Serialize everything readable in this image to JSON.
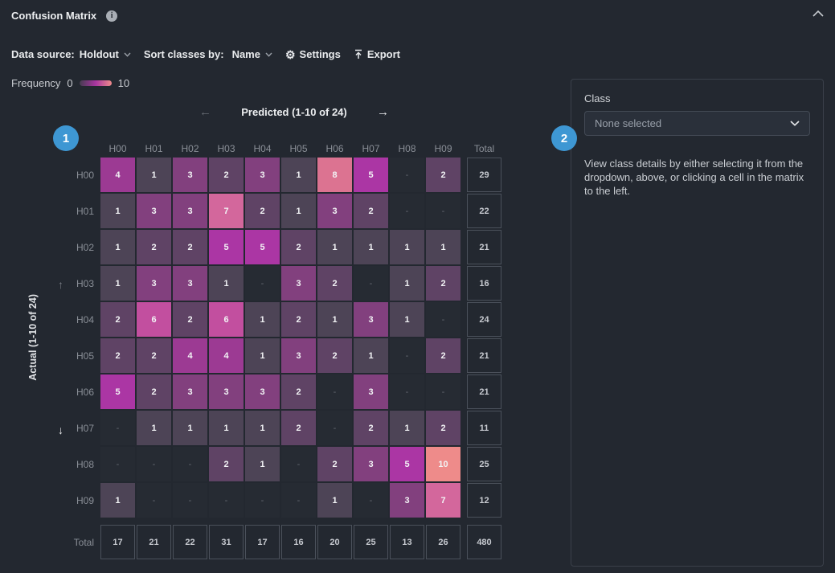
{
  "header": {
    "title": "Confusion Matrix"
  },
  "toolbar": {
    "data_source_label": "Data source:",
    "data_source_value": "Holdout",
    "sort_label": "Sort classes by:",
    "sort_value": "Name",
    "settings_label": "Settings",
    "export_label": "Export"
  },
  "legend": {
    "label": "Frequency",
    "min": "0",
    "max": "10"
  },
  "badges": {
    "badge1": "1",
    "badge2": "2"
  },
  "matrix": {
    "predicted_label": "Predicted (1-10 of 24)",
    "actual_label": "Actual (1-10 of 24)",
    "col_headers": [
      "H00",
      "H01",
      "H02",
      "H03",
      "H04",
      "H05",
      "H06",
      "H07",
      "H08",
      "H09"
    ],
    "row_headers": [
      "H00",
      "H01",
      "H02",
      "H03",
      "H04",
      "H05",
      "H06",
      "H07",
      "H08",
      "H09"
    ],
    "total_label": "Total",
    "empty_symbol": "-",
    "rows": [
      [
        4,
        1,
        3,
        2,
        3,
        1,
        8,
        5,
        0,
        2
      ],
      [
        1,
        3,
        3,
        7,
        2,
        1,
        3,
        2,
        0,
        0
      ],
      [
        1,
        2,
        2,
        5,
        5,
        2,
        1,
        1,
        1,
        1
      ],
      [
        1,
        3,
        3,
        1,
        0,
        3,
        2,
        0,
        1,
        2
      ],
      [
        2,
        6,
        2,
        6,
        1,
        2,
        1,
        3,
        1,
        0
      ],
      [
        2,
        2,
        4,
        4,
        1,
        3,
        2,
        1,
        0,
        2
      ],
      [
        5,
        2,
        3,
        3,
        3,
        2,
        0,
        3,
        0,
        0
      ],
      [
        0,
        1,
        1,
        1,
        1,
        2,
        0,
        2,
        1,
        2
      ],
      [
        0,
        0,
        0,
        2,
        1,
        0,
        2,
        3,
        5,
        10
      ],
      [
        1,
        0,
        0,
        0,
        0,
        0,
        1,
        0,
        3,
        7
      ]
    ],
    "row_totals": [
      29,
      22,
      21,
      16,
      24,
      21,
      21,
      11,
      25,
      12
    ],
    "col_totals": [
      17,
      21,
      22,
      31,
      17,
      16,
      20,
      25,
      13,
      26
    ],
    "grand_total": 480
  },
  "side_panel": {
    "class_label": "Class",
    "dropdown_value": "None selected",
    "description": "View class details by either selecting it from the dropdown, above, or clicking a cell in the matrix to the left."
  },
  "colors": {
    "page_bg": "#232830",
    "accent_blue": "#3e97d3",
    "legend_gradient_start": "#453c50",
    "legend_gradient_mid": "#a835a0",
    "legend_gradient_end": "#ee8b8a",
    "cell_colors": {
      "0": "#262b33",
      "1": "#4d4456",
      "2": "#5f4365",
      "3": "#82407e",
      "4": "#9c3a93",
      "5": "#ab36a4",
      "6": "#c24f9f",
      "7": "#d3679c",
      "8": "#dc7391",
      "9": "#e57f90",
      "10": "#ee8b8a"
    }
  }
}
